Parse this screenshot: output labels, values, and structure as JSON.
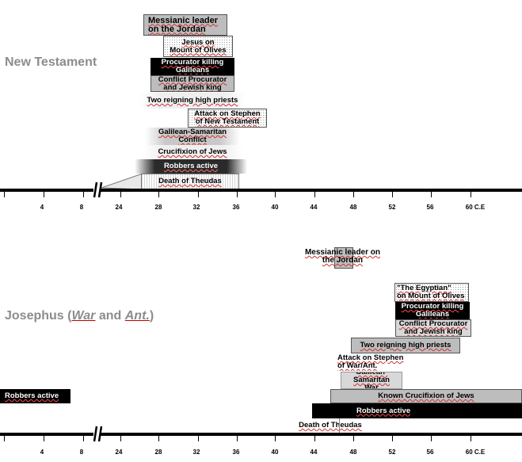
{
  "sections": [
    {
      "title": "New Testament",
      "bars": [
        {
          "label": "Messianic leader\non the Jordan",
          "style": "gray"
        },
        {
          "label": "Jesus on\nMount of Olives",
          "style": "dotted"
        },
        {
          "label": "Procurator killing\nGalileans",
          "style": "black"
        },
        {
          "label": "Conflict Procurator\nand Jewish king",
          "style": "gray"
        },
        {
          "label": "Two reigning high priests",
          "style": "fade-white"
        },
        {
          "label": "Attack on Stephen\nof New Testament",
          "style": "dotted"
        },
        {
          "label": "Galilean-Samaritan\nConflict",
          "style": "fade-gray"
        },
        {
          "label": "Crucifixion  of Jews",
          "style": "fade-white"
        },
        {
          "label": "Robbers active",
          "style": "fade-dark"
        },
        {
          "label": "Death of Theudas",
          "style": "striped"
        }
      ]
    },
    {
      "title_parts": [
        "Josephus (",
        "War",
        " and ",
        "Ant.",
        ")"
      ],
      "bars": [
        {
          "label": "Messianic leader on\nthe Jordan",
          "style": "gray"
        },
        {
          "label": "\"The Egyptian\"\non Mount of Olives",
          "style": "dotted"
        },
        {
          "label": "Procurator killing\nGalileans",
          "style": "black"
        },
        {
          "label": "Conflict Procurator\nand Jewish king",
          "style": "lightgray"
        },
        {
          "label": "Two reigning high priests",
          "style": "gray"
        },
        {
          "label": "Attack on Stephen\nof War/Ant.",
          "style": "plain"
        },
        {
          "label": "Galilean-Samaritan\nWar",
          "style": "lightgray"
        },
        {
          "label": "Known Crucifixion  of Jews",
          "style": "gray"
        },
        {
          "label": "Robbers active",
          "style": "black"
        },
        {
          "label": "Robbers active",
          "style": "black"
        },
        {
          "label": "Death of Theudas",
          "style": "plain"
        }
      ]
    }
  ],
  "axis": {
    "ticks": [
      "4",
      "8",
      "24",
      "28",
      "32",
      "36",
      "40",
      "44",
      "48",
      "52",
      "56",
      "60 C.E"
    ],
    "line_color": "#000000"
  },
  "colors": {
    "title": "#8c8c8c",
    "black_bar": "#000000",
    "gray_bar": "#bdbdbd"
  }
}
